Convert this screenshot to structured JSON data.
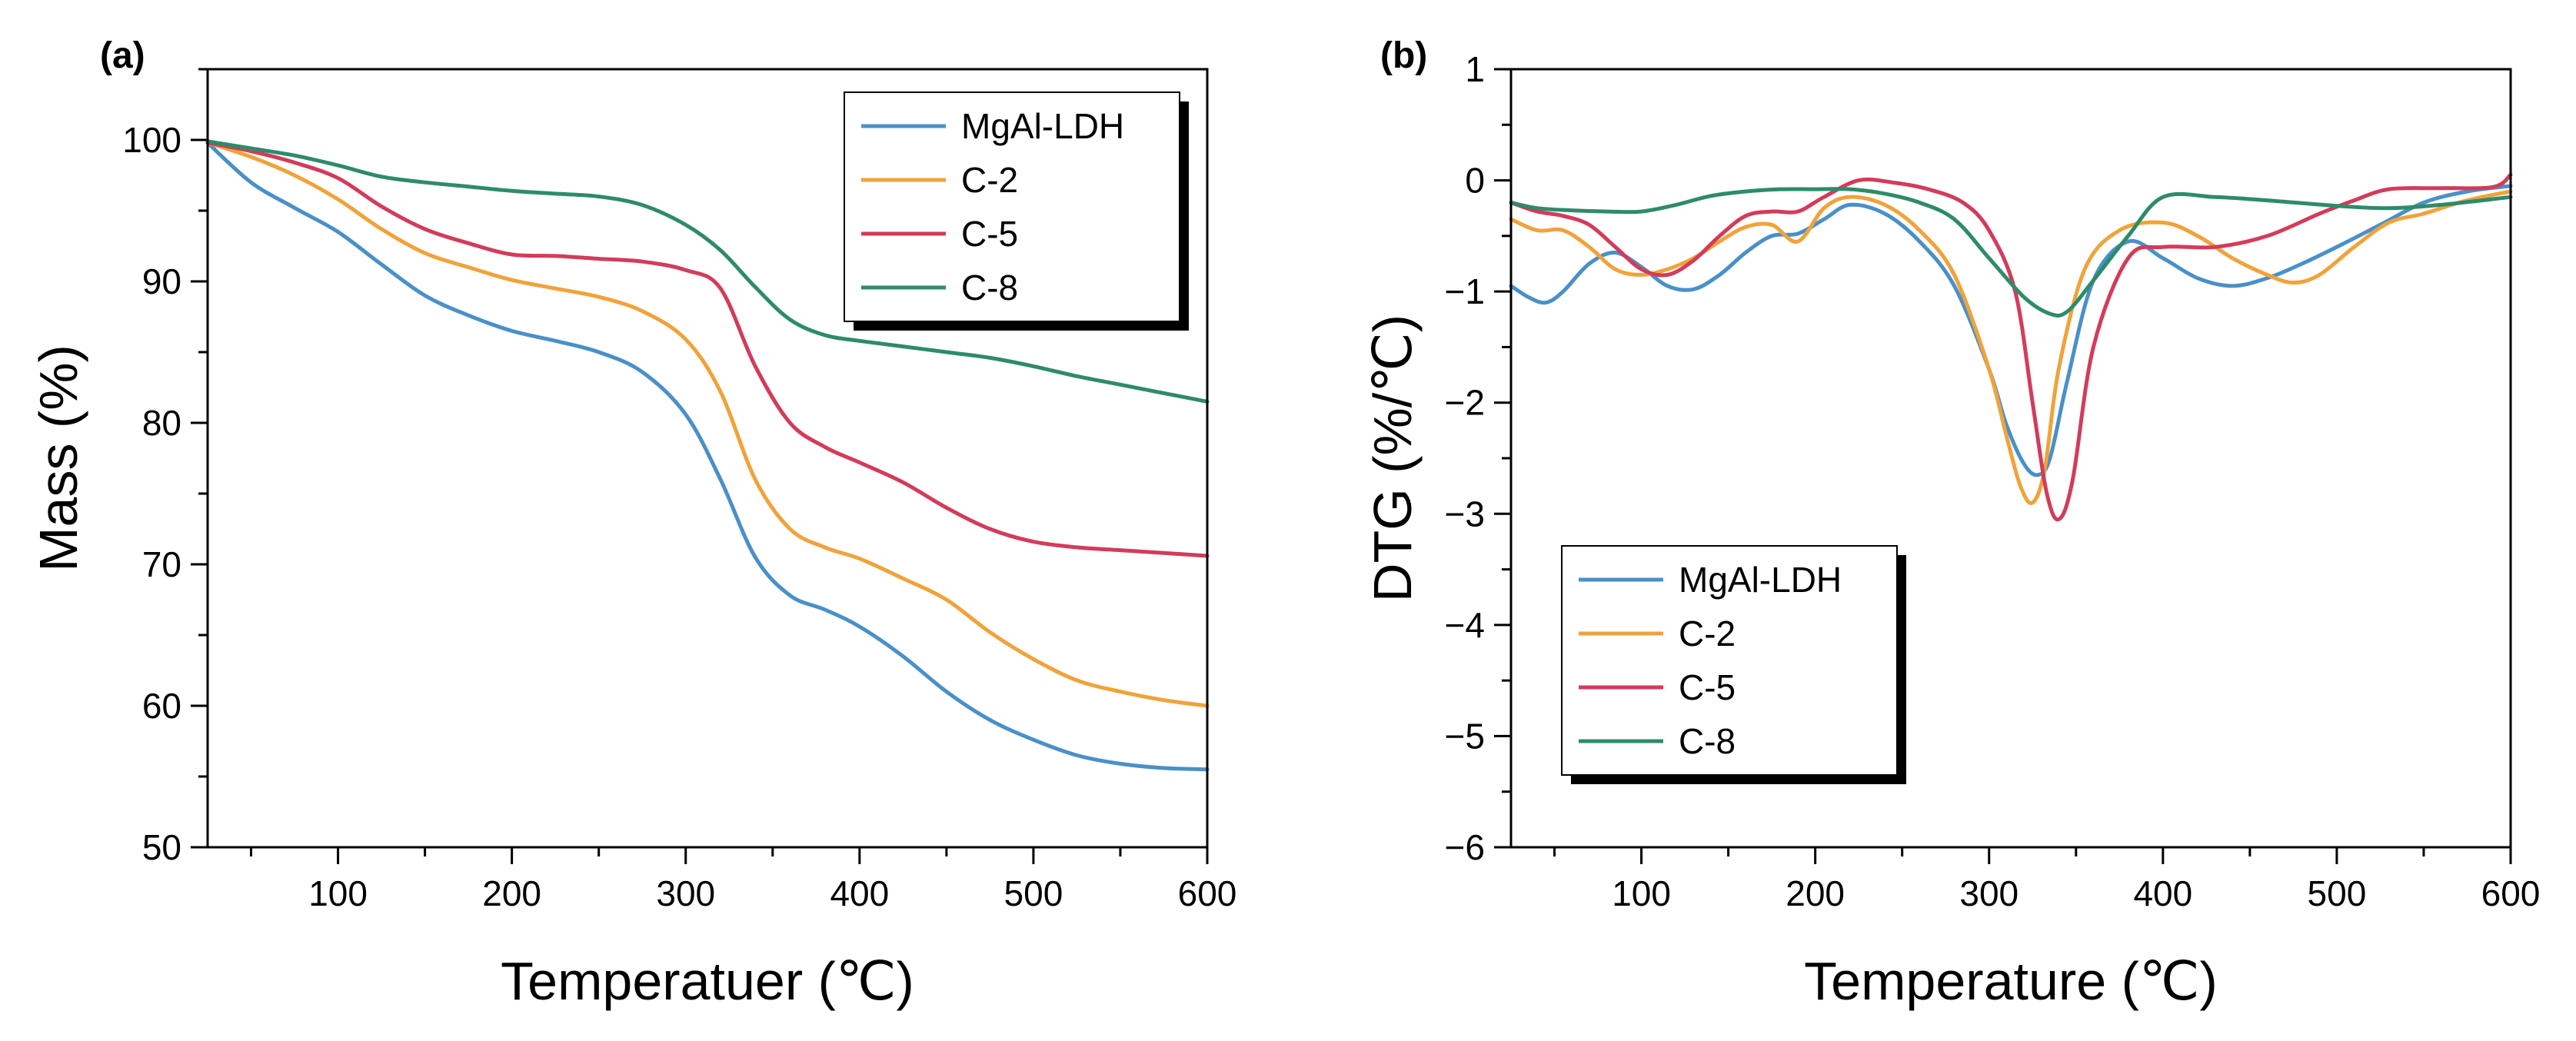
{
  "chart_data": [
    {
      "panel_label": "(a)",
      "type": "line",
      "xlabel": "Temperatuer (℃)",
      "ylabel": "Mass (%)",
      "xlim": [
        25,
        600
      ],
      "ylim": [
        50,
        105
      ],
      "xticks": [
        100,
        200,
        300,
        400,
        500,
        600
      ],
      "yticks": [
        50,
        60,
        70,
        80,
        90,
        100
      ],
      "legend": {
        "position": "top-right",
        "entries": [
          "MgAl-LDH",
          "C-2",
          "C-5",
          "C-8"
        ]
      },
      "series": [
        {
          "name": "MgAl-LDH",
          "color": "#4a90c8",
          "x": [
            25,
            50,
            75,
            100,
            125,
            150,
            175,
            200,
            225,
            250,
            275,
            300,
            320,
            340,
            360,
            380,
            400,
            425,
            450,
            475,
            500,
            525,
            550,
            575,
            600
          ],
          "y": [
            99.8,
            97.0,
            95.2,
            93.5,
            91.2,
            89.0,
            87.6,
            86.5,
            85.8,
            85.0,
            83.6,
            80.6,
            76.0,
            70.5,
            67.8,
            66.8,
            65.6,
            63.5,
            61.0,
            59.0,
            57.6,
            56.5,
            55.9,
            55.6,
            55.5
          ]
        },
        {
          "name": "C-2",
          "color": "#f0a33a",
          "x": [
            25,
            50,
            75,
            100,
            125,
            150,
            175,
            200,
            225,
            250,
            275,
            300,
            320,
            340,
            360,
            380,
            400,
            425,
            450,
            475,
            500,
            525,
            550,
            575,
            600
          ],
          "y": [
            99.8,
            98.8,
            97.5,
            95.8,
            93.7,
            92.0,
            91.0,
            90.1,
            89.5,
            88.9,
            87.9,
            85.9,
            82.2,
            76.0,
            72.5,
            71.2,
            70.4,
            69.0,
            67.5,
            65.2,
            63.3,
            61.8,
            61.0,
            60.4,
            60.0
          ]
        },
        {
          "name": "C-5",
          "color": "#d23c5a",
          "x": [
            25,
            50,
            75,
            100,
            125,
            150,
            175,
            200,
            225,
            250,
            275,
            300,
            320,
            340,
            360,
            380,
            400,
            425,
            450,
            475,
            500,
            525,
            550,
            575,
            600
          ],
          "y": [
            99.8,
            99.2,
            98.4,
            97.3,
            95.3,
            93.7,
            92.7,
            91.9,
            91.8,
            91.6,
            91.4,
            90.8,
            89.5,
            84.0,
            80.0,
            78.3,
            77.2,
            75.8,
            74.0,
            72.5,
            71.6,
            71.2,
            71.0,
            70.8,
            70.6
          ]
        },
        {
          "name": "C-8",
          "color": "#2e8b6a",
          "x": [
            25,
            50,
            75,
            100,
            125,
            150,
            175,
            200,
            225,
            250,
            275,
            300,
            320,
            340,
            360,
            380,
            400,
            425,
            450,
            475,
            500,
            525,
            550,
            575,
            600
          ],
          "y": [
            99.9,
            99.4,
            98.9,
            98.2,
            97.4,
            97.0,
            96.7,
            96.4,
            96.2,
            96.0,
            95.4,
            94.0,
            92.2,
            89.6,
            87.3,
            86.2,
            85.8,
            85.4,
            85.0,
            84.6,
            84.0,
            83.3,
            82.7,
            82.1,
            81.5
          ]
        }
      ]
    },
    {
      "panel_label": "(b)",
      "type": "line",
      "xlabel": "Temperature (℃)",
      "ylabel": "DTG (%/℃)",
      "xlim": [
        25,
        600
      ],
      "ylim": [
        -6,
        1
      ],
      "xticks": [
        100,
        200,
        300,
        400,
        500,
        600
      ],
      "yticks": [
        1,
        0,
        -1,
        -2,
        -3,
        -4,
        -5,
        -6
      ],
      "ytick_labels": [
        "1",
        "0",
        "−1",
        "−2",
        "−3",
        "−4",
        "−5",
        "−6"
      ],
      "legend": {
        "position": "bottom-left",
        "entries": [
          "MgAl-LDH",
          "C-2",
          "C-5",
          "C-8"
        ]
      },
      "series": [
        {
          "name": "MgAl-LDH",
          "color": "#4a90c8",
          "x": [
            25,
            35,
            45,
            55,
            70,
            85,
            100,
            115,
            130,
            145,
            160,
            175,
            190,
            205,
            220,
            240,
            260,
            280,
            300,
            310,
            320,
            328,
            335,
            345,
            360,
            380,
            400,
            420,
            440,
            460,
            480,
            500,
            525,
            550,
            575,
            600
          ],
          "y": [
            -0.95,
            -1.05,
            -1.1,
            -1.0,
            -0.75,
            -0.65,
            -0.78,
            -0.95,
            -0.98,
            -0.85,
            -0.65,
            -0.5,
            -0.48,
            -0.35,
            -0.22,
            -0.3,
            -0.55,
            -0.95,
            -1.7,
            -2.2,
            -2.55,
            -2.65,
            -2.5,
            -1.8,
            -0.9,
            -0.55,
            -0.7,
            -0.88,
            -0.95,
            -0.88,
            -0.75,
            -0.6,
            -0.4,
            -0.2,
            -0.1,
            -0.05
          ]
        },
        {
          "name": "C-2",
          "color": "#f0a33a",
          "x": [
            25,
            40,
            55,
            70,
            85,
            100,
            115,
            130,
            145,
            160,
            175,
            190,
            205,
            220,
            240,
            260,
            280,
            300,
            310,
            318,
            325,
            332,
            340,
            355,
            375,
            400,
            420,
            440,
            460,
            475,
            490,
            510,
            530,
            550,
            575,
            600
          ],
          "y": [
            -0.35,
            -0.45,
            -0.45,
            -0.6,
            -0.8,
            -0.85,
            -0.8,
            -0.7,
            -0.55,
            -0.42,
            -0.4,
            -0.55,
            -0.25,
            -0.15,
            -0.22,
            -0.45,
            -0.85,
            -1.7,
            -2.3,
            -2.75,
            -2.9,
            -2.6,
            -1.7,
            -0.8,
            -0.45,
            -0.38,
            -0.5,
            -0.7,
            -0.85,
            -0.92,
            -0.85,
            -0.6,
            -0.38,
            -0.3,
            -0.18,
            -0.1
          ]
        },
        {
          "name": "C-5",
          "color": "#d23c5a",
          "x": [
            25,
            40,
            55,
            70,
            85,
            100,
            115,
            130,
            145,
            160,
            175,
            190,
            205,
            225,
            245,
            265,
            285,
            300,
            315,
            325,
            333,
            340,
            348,
            360,
            380,
            400,
            430,
            460,
            490,
            510,
            530,
            560,
            590,
            600
          ],
          "y": [
            -0.2,
            -0.28,
            -0.32,
            -0.4,
            -0.6,
            -0.8,
            -0.85,
            -0.72,
            -0.5,
            -0.32,
            -0.28,
            -0.28,
            -0.15,
            0.0,
            -0.02,
            -0.08,
            -0.2,
            -0.45,
            -1.0,
            -2.0,
            -2.8,
            -3.05,
            -2.7,
            -1.5,
            -0.7,
            -0.6,
            -0.6,
            -0.5,
            -0.3,
            -0.18,
            -0.08,
            -0.07,
            -0.06,
            0.05
          ]
        },
        {
          "name": "C-8",
          "color": "#2e8b6a",
          "x": [
            25,
            40,
            60,
            80,
            100,
            120,
            140,
            160,
            180,
            200,
            220,
            240,
            260,
            280,
            300,
            320,
            335,
            345,
            360,
            380,
            400,
            430,
            460,
            500,
            530,
            560,
            600
          ],
          "y": [
            -0.2,
            -0.25,
            -0.27,
            -0.28,
            -0.28,
            -0.22,
            -0.14,
            -0.1,
            -0.08,
            -0.08,
            -0.08,
            -0.12,
            -0.2,
            -0.35,
            -0.7,
            -1.05,
            -1.2,
            -1.18,
            -0.9,
            -0.5,
            -0.15,
            -0.15,
            -0.18,
            -0.23,
            -0.25,
            -0.22,
            -0.15
          ]
        }
      ]
    }
  ]
}
